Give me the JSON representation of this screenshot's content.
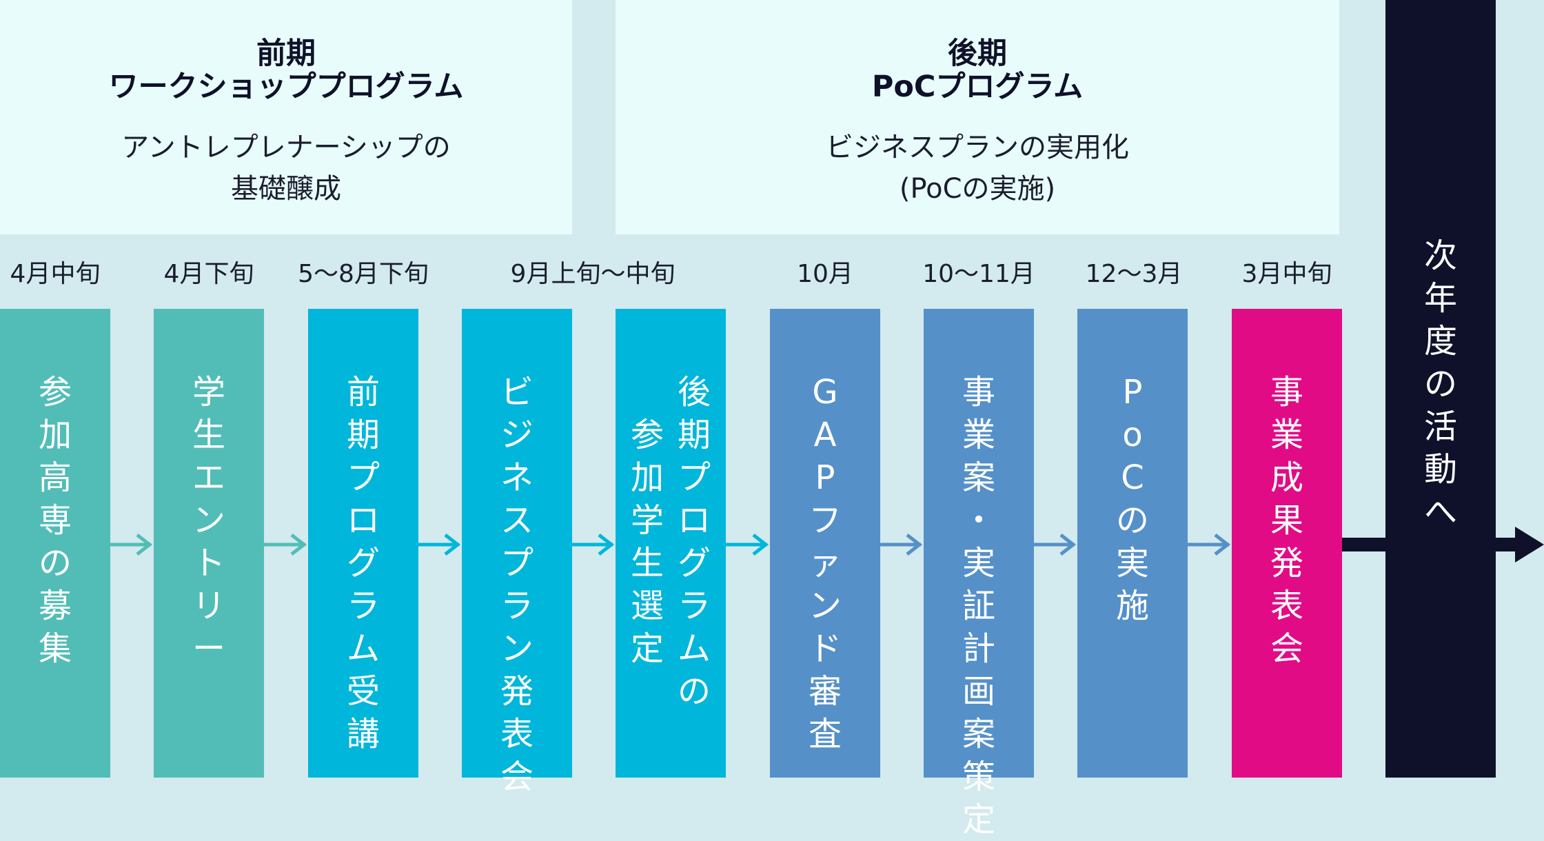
{
  "colors": {
    "teal": "#52bdb7",
    "cyan": "#00b6da",
    "blue": "#5590c9",
    "magenta": "#e20b86",
    "navy": "#0e1129",
    "background": "#d3eaee",
    "panel": "#e8fdfb"
  },
  "phases": [
    {
      "title": "前期\nワークショッププログラム",
      "description": "アントレプレナーシップの\n基礎醸成"
    },
    {
      "title": "後期\nPoCプログラム",
      "description": "ビジネスプランの実用化\n(PoCの実施)"
    }
  ],
  "dates": [
    "4月中旬",
    "4月下旬",
    "5〜8月下旬",
    "9月上旬〜中旬",
    "10月",
    "10〜11月",
    "12〜3月",
    "3月中旬"
  ],
  "steps": [
    {
      "label": "参加高専の募集",
      "color": "teal"
    },
    {
      "label": "学生エントリー",
      "color": "teal"
    },
    {
      "label": "前期プログラム受講",
      "color": "cyan"
    },
    {
      "label": "ビジネスプラン発表会",
      "color": "cyan"
    },
    {
      "label": "後期プログラムの参加学生選定",
      "color": "cyan"
    },
    {
      "label": "GAPファンド審査",
      "color": "blue"
    },
    {
      "label": "事業案・実証計画案策定",
      "color": "blue"
    },
    {
      "label": "PoCの実施",
      "color": "blue"
    },
    {
      "label": "事業成果発表会",
      "color": "magenta"
    }
  ],
  "next_year": {
    "label": "次年度の活動へ"
  }
}
